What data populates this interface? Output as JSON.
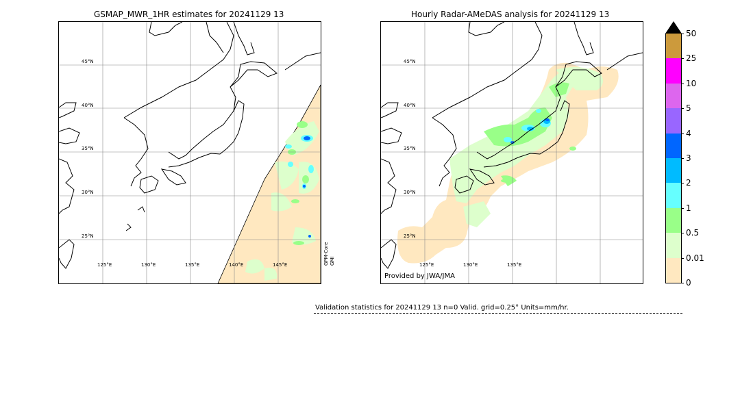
{
  "left_panel": {
    "title": "GSMAP_MWR_1HR estimates for 20241129 13",
    "lat_labels": [
      "45°N",
      "40°N",
      "35°N",
      "30°N",
      "25°N"
    ],
    "lon_labels": [
      "125°E",
      "130°E",
      "135°E",
      "140°E",
      "145°E"
    ],
    "sensor_line1": "GPM-Core",
    "sensor_line2": "GMI"
  },
  "right_panel": {
    "title": "Hourly Radar-AMeDAS analysis for 20241129 13",
    "lat_labels": [
      "45°N",
      "40°N",
      "35°N",
      "30°N",
      "25°N"
    ],
    "lon_labels": [
      "125°E",
      "130°E",
      "135°E"
    ],
    "credit": "Provided by JWA/JMA"
  },
  "colorbar": {
    "ticks": [
      "50",
      "25",
      "10",
      "5",
      "4",
      "3",
      "2",
      "1",
      "0.5",
      "0.01",
      "0"
    ],
    "colors": [
      "#cc9a3c",
      "#ff00ff",
      "#dd66ee",
      "#9966ff",
      "#0066ff",
      "#00bbff",
      "#66ffff",
      "#99ff88",
      "#ddffcc",
      "#ffe8c0"
    ],
    "overflow_color": "#000000"
  },
  "footer": {
    "stats": "Validation statistics for 20241129 13  n=0 Valid. grid=0.25° Units=mm/hr."
  }
}
